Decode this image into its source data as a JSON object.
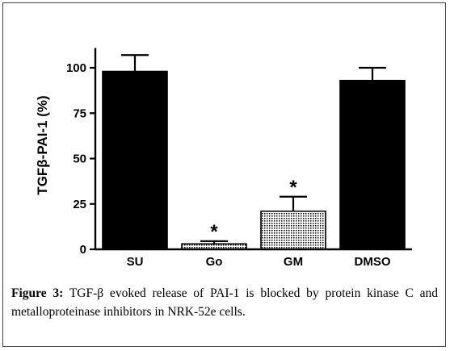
{
  "chart_data": {
    "type": "bar",
    "categories": [
      "SU",
      "Go",
      "GM",
      "DMSO"
    ],
    "values": [
      98,
      3,
      21,
      93
    ],
    "errors": [
      9,
      1.5,
      8,
      7
    ],
    "significant": [
      "",
      "*",
      "*",
      ""
    ],
    "ylabel": "TGFβ-PAI-1 (%)",
    "ylim": [
      0,
      110
    ],
    "yticks": [
      0,
      25,
      50,
      75,
      100
    ],
    "bar_fills": [
      "solid",
      "dotted",
      "dotted",
      "solid"
    ],
    "colors": {
      "bar": "#000000",
      "dotted_bg": "#ffffff",
      "dotted_dot": "#000000"
    }
  },
  "caption": {
    "label": "Figure 3:",
    "text": " TGF-β  evoked release of PAI-1 is blocked by protein kinase C and metalloproteinase inhibitors in NRK-52e cells."
  }
}
